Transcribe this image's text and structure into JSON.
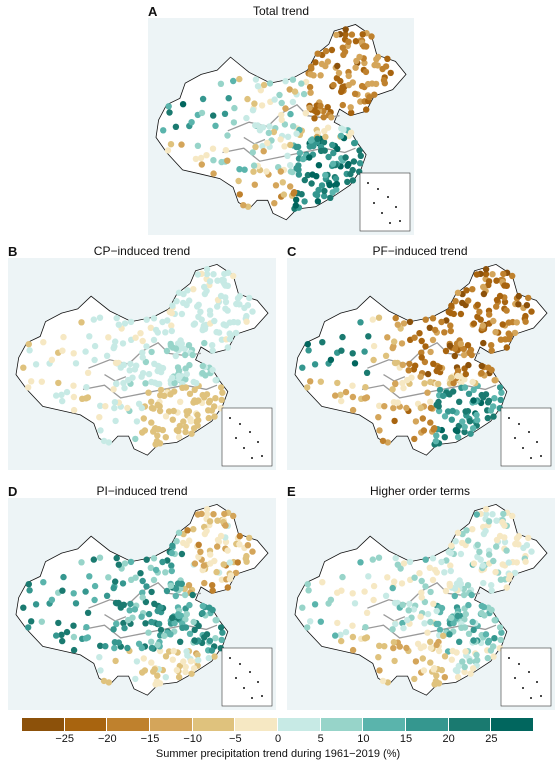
{
  "panels": [
    {
      "letter": "A",
      "title": "Total trend",
      "pattern": "total"
    },
    {
      "letter": "B",
      "title": "CP−induced trend",
      "pattern": "cp"
    },
    {
      "letter": "C",
      "title": "PF−induced trend",
      "pattern": "pf"
    },
    {
      "letter": "D",
      "title": "PI−induced trend",
      "pattern": "pi"
    },
    {
      "letter": "E",
      "title": "Higher order terms",
      "pattern": "hot"
    }
  ],
  "legend": {
    "title": "Summer precipitation trend during 1961−2019 (%)",
    "ticks": [
      "−25",
      "−20",
      "−15",
      "−10",
      "−5",
      "0",
      "5",
      "10",
      "15",
      "20",
      "25"
    ],
    "tick_values": [
      -25,
      -20,
      -15,
      -10,
      -5,
      0,
      5,
      10,
      15,
      20,
      25
    ],
    "bins": [
      {
        "range": "< -25",
        "color": "#8c510a"
      },
      {
        "range": "-25 to -20",
        "color": "#a8640f"
      },
      {
        "range": "-20 to -15",
        "color": "#bf812d"
      },
      {
        "range": "-15 to -10",
        "color": "#d4a55a"
      },
      {
        "range": "-10 to -5",
        "color": "#dfc27d"
      },
      {
        "range": "-5 to 0",
        "color": "#f6e8c3"
      },
      {
        "range": "0 to 5",
        "color": "#c7eae5"
      },
      {
        "range": "5 to 10",
        "color": "#97d4c9"
      },
      {
        "range": "10 to 15",
        "color": "#5ab4ac"
      },
      {
        "range": "15 to 20",
        "color": "#35978f"
      },
      {
        "range": "20 to 25",
        "color": "#1a7a70"
      },
      {
        "range": "> 25",
        "color": "#01665e"
      }
    ]
  },
  "colors": {
    "ocean": "#edf4f6",
    "border": "#111111",
    "river": "#9a9a9a"
  }
}
